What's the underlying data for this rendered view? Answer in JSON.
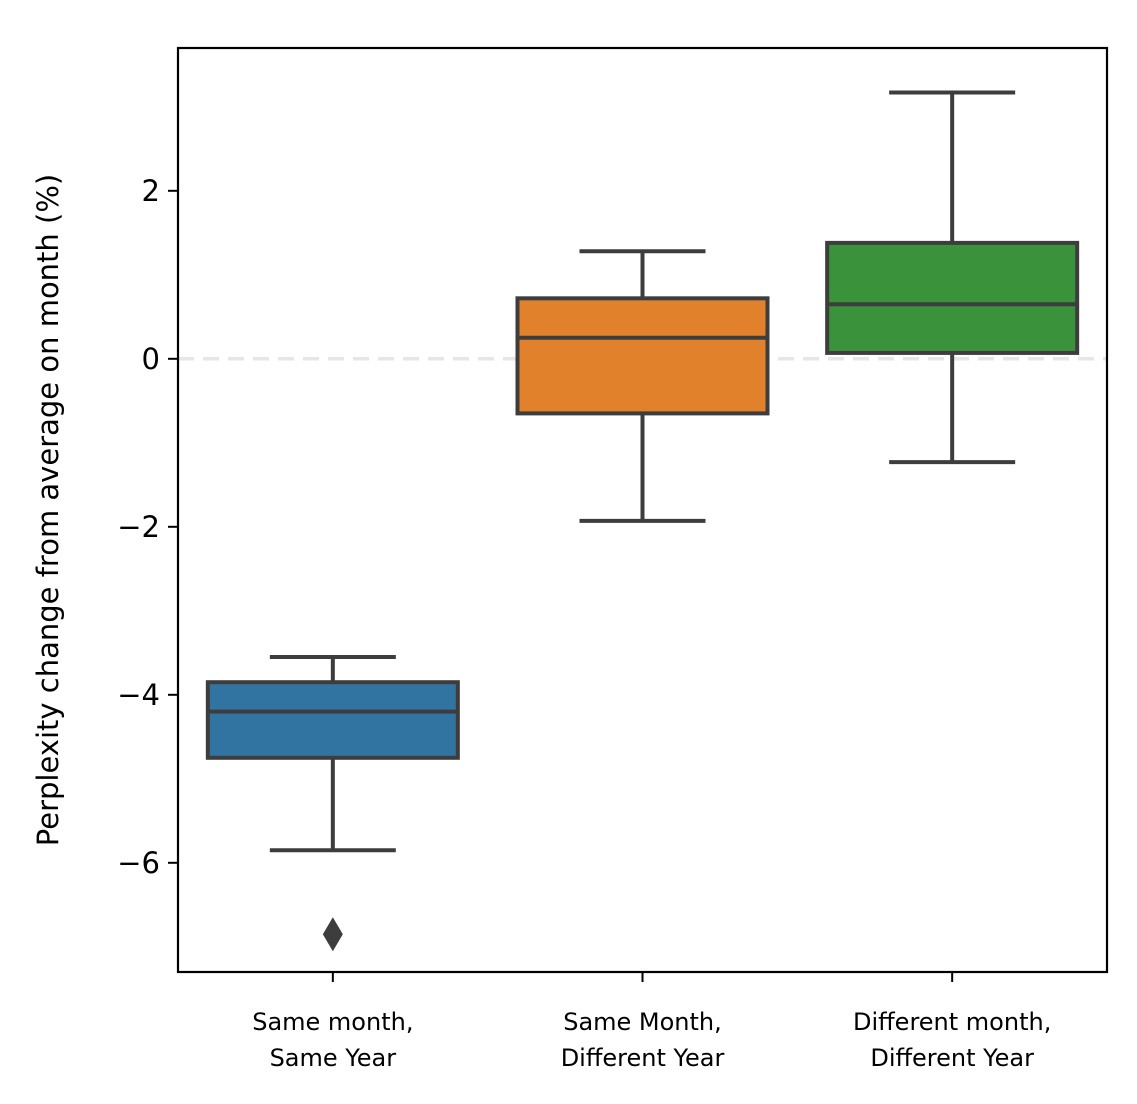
{
  "chart_data": {
    "type": "box",
    "ylabel": "Perplexity change from average on month (%)",
    "xlabel": "",
    "ylim": [
      -7.3,
      3.7
    ],
    "yticks": [
      -6,
      -4,
      -2,
      0,
      2
    ],
    "ytick_labels": [
      "−6",
      "−4",
      "−2",
      "0",
      "2"
    ],
    "reference_line": {
      "y": 0,
      "style": "dashed",
      "color": "#e6e6e6"
    },
    "grid": false,
    "categories": [
      {
        "line1": "Same month,",
        "line2": "Same Year"
      },
      {
        "line1": "Same Month,",
        "line2": "Different Year"
      },
      {
        "line1": "Different month,",
        "line2": "Different Year"
      }
    ],
    "boxes": [
      {
        "whisker_low": -5.85,
        "q1": -4.75,
        "median": -4.2,
        "q3": -3.85,
        "whisker_high": -3.55,
        "outliers": [
          -6.85
        ],
        "color": "#3274a1"
      },
      {
        "whisker_low": -1.93,
        "q1": -0.65,
        "median": 0.25,
        "q3": 0.72,
        "whisker_high": 1.28,
        "outliers": [],
        "color": "#e1812c"
      },
      {
        "whisker_low": -1.23,
        "q1": 0.07,
        "median": 0.65,
        "q3": 1.38,
        "whisker_high": 3.17,
        "outliers": [],
        "color": "#3a923a"
      }
    ],
    "edge_color": "#3d3d3d"
  }
}
